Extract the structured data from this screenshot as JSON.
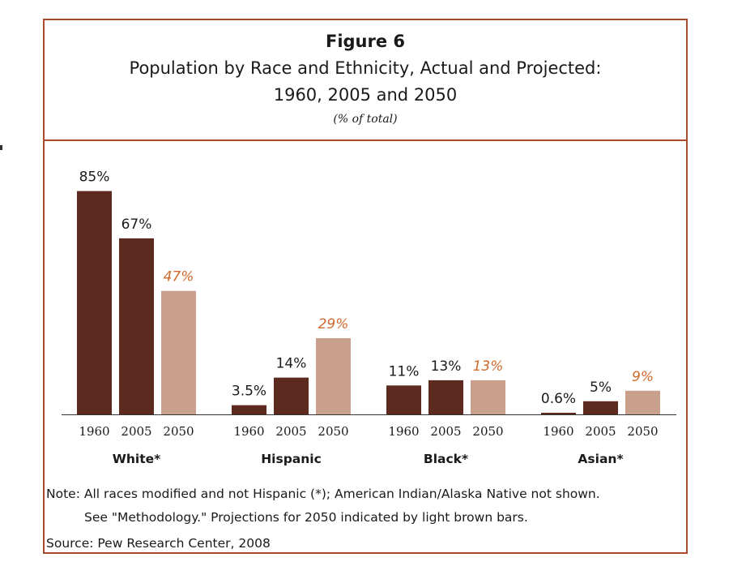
{
  "header": {
    "figure_label": "Figure 6",
    "title_line1": "Population by Race and Ethnicity, Actual and Projected:",
    "title_line2": "1960, 2005 and 2050",
    "unit": "(% of total)"
  },
  "footer": {
    "note_line1": "Note: All races modified and not Hispanic (*); American Indian/Alaska Native not shown.",
    "note_line2": "See \"Methodology.\"  Projections for 2050 indicated by light brown bars.",
    "source": "Source: Pew Research Center, 2008"
  },
  "colors": {
    "actual": "#5c2a1f",
    "projected": "#c9a08c",
    "projected_label": "#d06a2c",
    "frame": "#a84a2e"
  },
  "chart_data": {
    "type": "bar",
    "years": [
      "1960",
      "2005",
      "2050"
    ],
    "groups": [
      {
        "name": "White*",
        "values": [
          85,
          67,
          47
        ],
        "labels": [
          "85%",
          "67%",
          "47%"
        ]
      },
      {
        "name": "Hispanic",
        "values": [
          3.5,
          14,
          29
        ],
        "labels": [
          "3.5%",
          "14%",
          "29%"
        ]
      },
      {
        "name": "Black*",
        "values": [
          11,
          13,
          13
        ],
        "labels": [
          "11%",
          "13%",
          "13%"
        ]
      },
      {
        "name": "Asian*",
        "values": [
          0.6,
          5,
          9
        ],
        "labels": [
          "0.6%",
          "5%",
          "9%"
        ]
      }
    ],
    "projected_year_index": 2,
    "ylim": [
      0,
      100
    ],
    "grid": false
  }
}
